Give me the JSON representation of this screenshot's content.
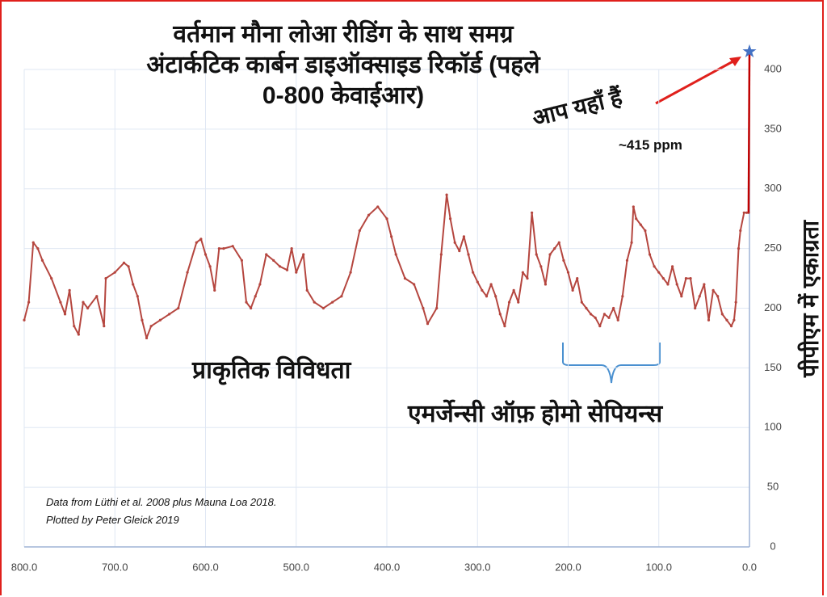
{
  "chart_data": {
    "type": "line",
    "title_lines": [
      "वर्तमान मौना लोआ रीडिंग के साथ समग्र",
      "अंटार्कटिक कार्बन डाइऑक्साइड रिकॉर्ड (पहले",
      "0-800 केवाईआर)"
    ],
    "y_label": "पीपीएम में एकाग्रता",
    "annotations": [
      "आप यहाँ हैं",
      "~415 ppm",
      "प्राकृतिक विविधता",
      "एमर्जेन्सी ऑफ़ होमो सेपियन्स"
    ],
    "notes": [
      "Data from Lüthi et al. 2008 plus Mauna Loa 2018.",
      "Plotted by Peter Gleick 2019"
    ],
    "xlim": [
      800,
      0
    ],
    "xticks": [
      {
        "value": 800,
        "label": "800.0"
      },
      {
        "value": 700,
        "label": "700.0"
      },
      {
        "value": 600,
        "label": "600.0"
      },
      {
        "value": 500,
        "label": "500.0"
      },
      {
        "value": 400,
        "label": "400.0"
      },
      {
        "value": 300,
        "label": "300.0"
      },
      {
        "value": 200,
        "label": "200.0"
      },
      {
        "value": 100,
        "label": "100.0"
      },
      {
        "value": 0,
        "label": "0.0"
      }
    ],
    "ylim": [
      0,
      400
    ],
    "yticks": [
      0,
      50,
      100,
      150,
      200,
      250,
      300,
      350,
      400
    ],
    "grid": true,
    "series": [
      {
        "color": "#b5463f",
        "x": [
          800,
          795,
          790,
          785,
          780,
          770,
          760,
          755,
          750,
          745,
          740,
          735,
          730,
          720,
          712,
          710,
          700,
          690,
          685,
          680,
          675,
          670,
          665,
          660,
          650,
          640,
          630,
          620,
          610,
          605,
          600,
          595,
          590,
          585,
          580,
          570,
          560,
          555,
          550,
          545,
          540,
          533,
          525,
          518,
          510,
          505,
          500,
          492,
          488,
          480,
          470,
          460,
          450,
          440,
          430,
          420,
          410,
          400,
          395,
          390,
          380,
          370,
          360,
          355,
          345,
          340,
          334,
          330,
          325,
          320,
          315,
          310,
          305,
          300,
          295,
          290,
          285,
          280,
          275,
          270,
          265,
          260,
          255,
          250,
          245,
          240,
          235,
          230,
          225,
          220,
          215,
          210,
          205,
          200,
          195,
          190,
          185,
          180,
          175,
          170,
          165,
          160,
          155,
          150,
          145,
          140,
          135,
          130,
          128,
          125,
          120,
          115,
          110,
          105,
          100,
          95,
          90,
          85,
          80,
          75,
          70,
          65,
          60,
          55,
          50,
          45,
          40,
          35,
          30,
          25,
          20,
          17,
          15,
          12,
          10,
          6,
          3,
          1
        ],
        "values": [
          190,
          205,
          255,
          250,
          240,
          225,
          205,
          195,
          215,
          185,
          178,
          205,
          200,
          210,
          185,
          225,
          230,
          238,
          235,
          220,
          210,
          190,
          175,
          185,
          190,
          195,
          200,
          230,
          255,
          258,
          245,
          235,
          215,
          250,
          250,
          252,
          240,
          205,
          200,
          210,
          220,
          245,
          240,
          235,
          232,
          250,
          230,
          245,
          215,
          205,
          200,
          205,
          210,
          230,
          265,
          278,
          285,
          275,
          260,
          245,
          225,
          220,
          200,
          187,
          200,
          245,
          295,
          275,
          255,
          248,
          260,
          245,
          230,
          222,
          215,
          210,
          220,
          210,
          195,
          185,
          205,
          215,
          205,
          230,
          225,
          280,
          245,
          235,
          220,
          245,
          250,
          255,
          240,
          230,
          215,
          225,
          205,
          200,
          195,
          192,
          185,
          195,
          192,
          200,
          190,
          210,
          240,
          255,
          285,
          275,
          270,
          265,
          245,
          235,
          230,
          225,
          220,
          235,
          220,
          210,
          225,
          225,
          200,
          210,
          220,
          190,
          215,
          210,
          195,
          190,
          185,
          190,
          205,
          250,
          265,
          280,
          280,
          280
        ]
      },
      {
        "color": "#c00000",
        "marker_color": "#4472c4",
        "x": [
          1,
          0
        ],
        "values": [
          280,
          415
        ]
      }
    ]
  }
}
